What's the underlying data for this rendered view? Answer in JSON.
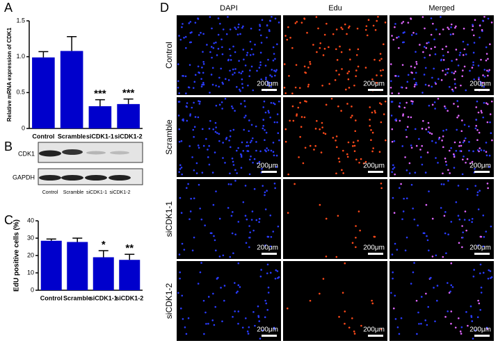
{
  "panel_labels": [
    "A",
    "B",
    "C",
    "D"
  ],
  "chart_data": [
    {
      "type": "bar",
      "y_label": "Relative mRNA expression of CDK1",
      "categories": [
        "Control",
        "Scramble",
        "siCDK1-1",
        "siCDK1-2"
      ],
      "values": [
        0.99,
        1.08,
        0.31,
        0.34
      ],
      "errors": [
        0.08,
        0.2,
        0.09,
        0.07
      ],
      "annotations": [
        null,
        null,
        "***",
        "***"
      ],
      "color": "#0000cc",
      "ylim": [
        0,
        1.5
      ],
      "yticks": [
        0,
        0.5,
        {
          "value": 1,
          "label": "1.0"
        },
        1.5
      ]
    },
    {
      "type": "bar",
      "y_label": "EdU positive cells (%)",
      "categories": [
        "Control",
        "Scramble",
        "siCDK1-1",
        "siCDK1-2"
      ],
      "values": [
        28.5,
        27.8,
        19,
        17.5
      ],
      "errors": [
        1,
        2.2,
        3.8,
        3.2
      ],
      "annotations": [
        null,
        null,
        "*",
        "**"
      ],
      "color": "#0000cc",
      "ylim": [
        0,
        40
      ],
      "yticks": [
        0,
        10,
        20,
        30,
        40
      ]
    }
  ],
  "blot": {
    "rows": [
      "CDK1",
      "GAPDH"
    ],
    "lanes": [
      "Control",
      "Scramble",
      "siCDK1-1",
      "siCDK1-2"
    ]
  },
  "microscopy": {
    "columns": [
      "DAPI",
      "Edu",
      "Merged"
    ],
    "rows": [
      "Control",
      "Scramble",
      "siCDK1-1",
      "siCDK1-2"
    ],
    "scale_label": "200μm"
  }
}
